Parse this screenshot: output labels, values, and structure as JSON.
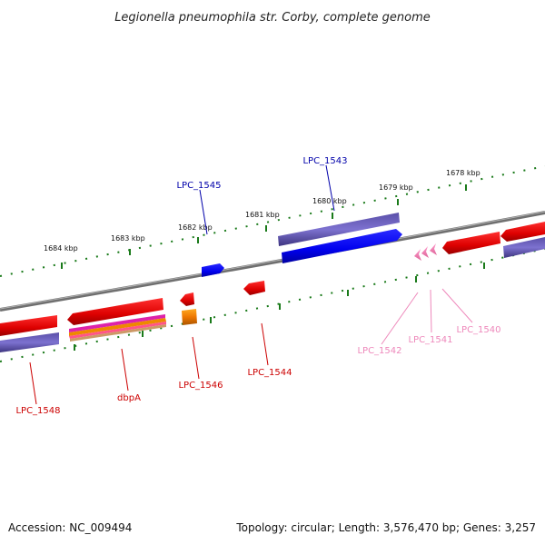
{
  "title": "Legionella pneumophila str. Corby, complete genome",
  "ruler_labels": [
    "1684 kbp",
    "1683 kbp",
    "1682 kbp",
    "1681 kbp",
    "1680 kbp",
    "1679 kbp",
    "1678 kbp"
  ],
  "genes": [
    {
      "id": "lpc1545",
      "label": "LPC_1545",
      "color": "#0000aa"
    },
    {
      "id": "lpc1543",
      "label": "LPC_1543",
      "color": "#0000aa"
    },
    {
      "id": "lpc1548",
      "label": "LPC_1548",
      "color": "#cc0000"
    },
    {
      "id": "dbpa",
      "label": "dbpA",
      "color": "#cc0000"
    },
    {
      "id": "lpc1546",
      "label": "LPC_1546",
      "color": "#cc0000"
    },
    {
      "id": "lpc1544",
      "label": "LPC_1544",
      "color": "#cc0000"
    },
    {
      "id": "lpc1542",
      "label": "LPC_1542",
      "color": "#ee88bb"
    },
    {
      "id": "lpc1541",
      "label": "LPC_1541",
      "color": "#ee88bb"
    },
    {
      "id": "lpc1540",
      "label": "LPC_1540",
      "color": "#ee88bb"
    }
  ],
  "footer": {
    "accession": "Accession: NC_009494",
    "topology": "Topology: circular; Length: 3,576,470 bp; Genes: 3,257"
  }
}
